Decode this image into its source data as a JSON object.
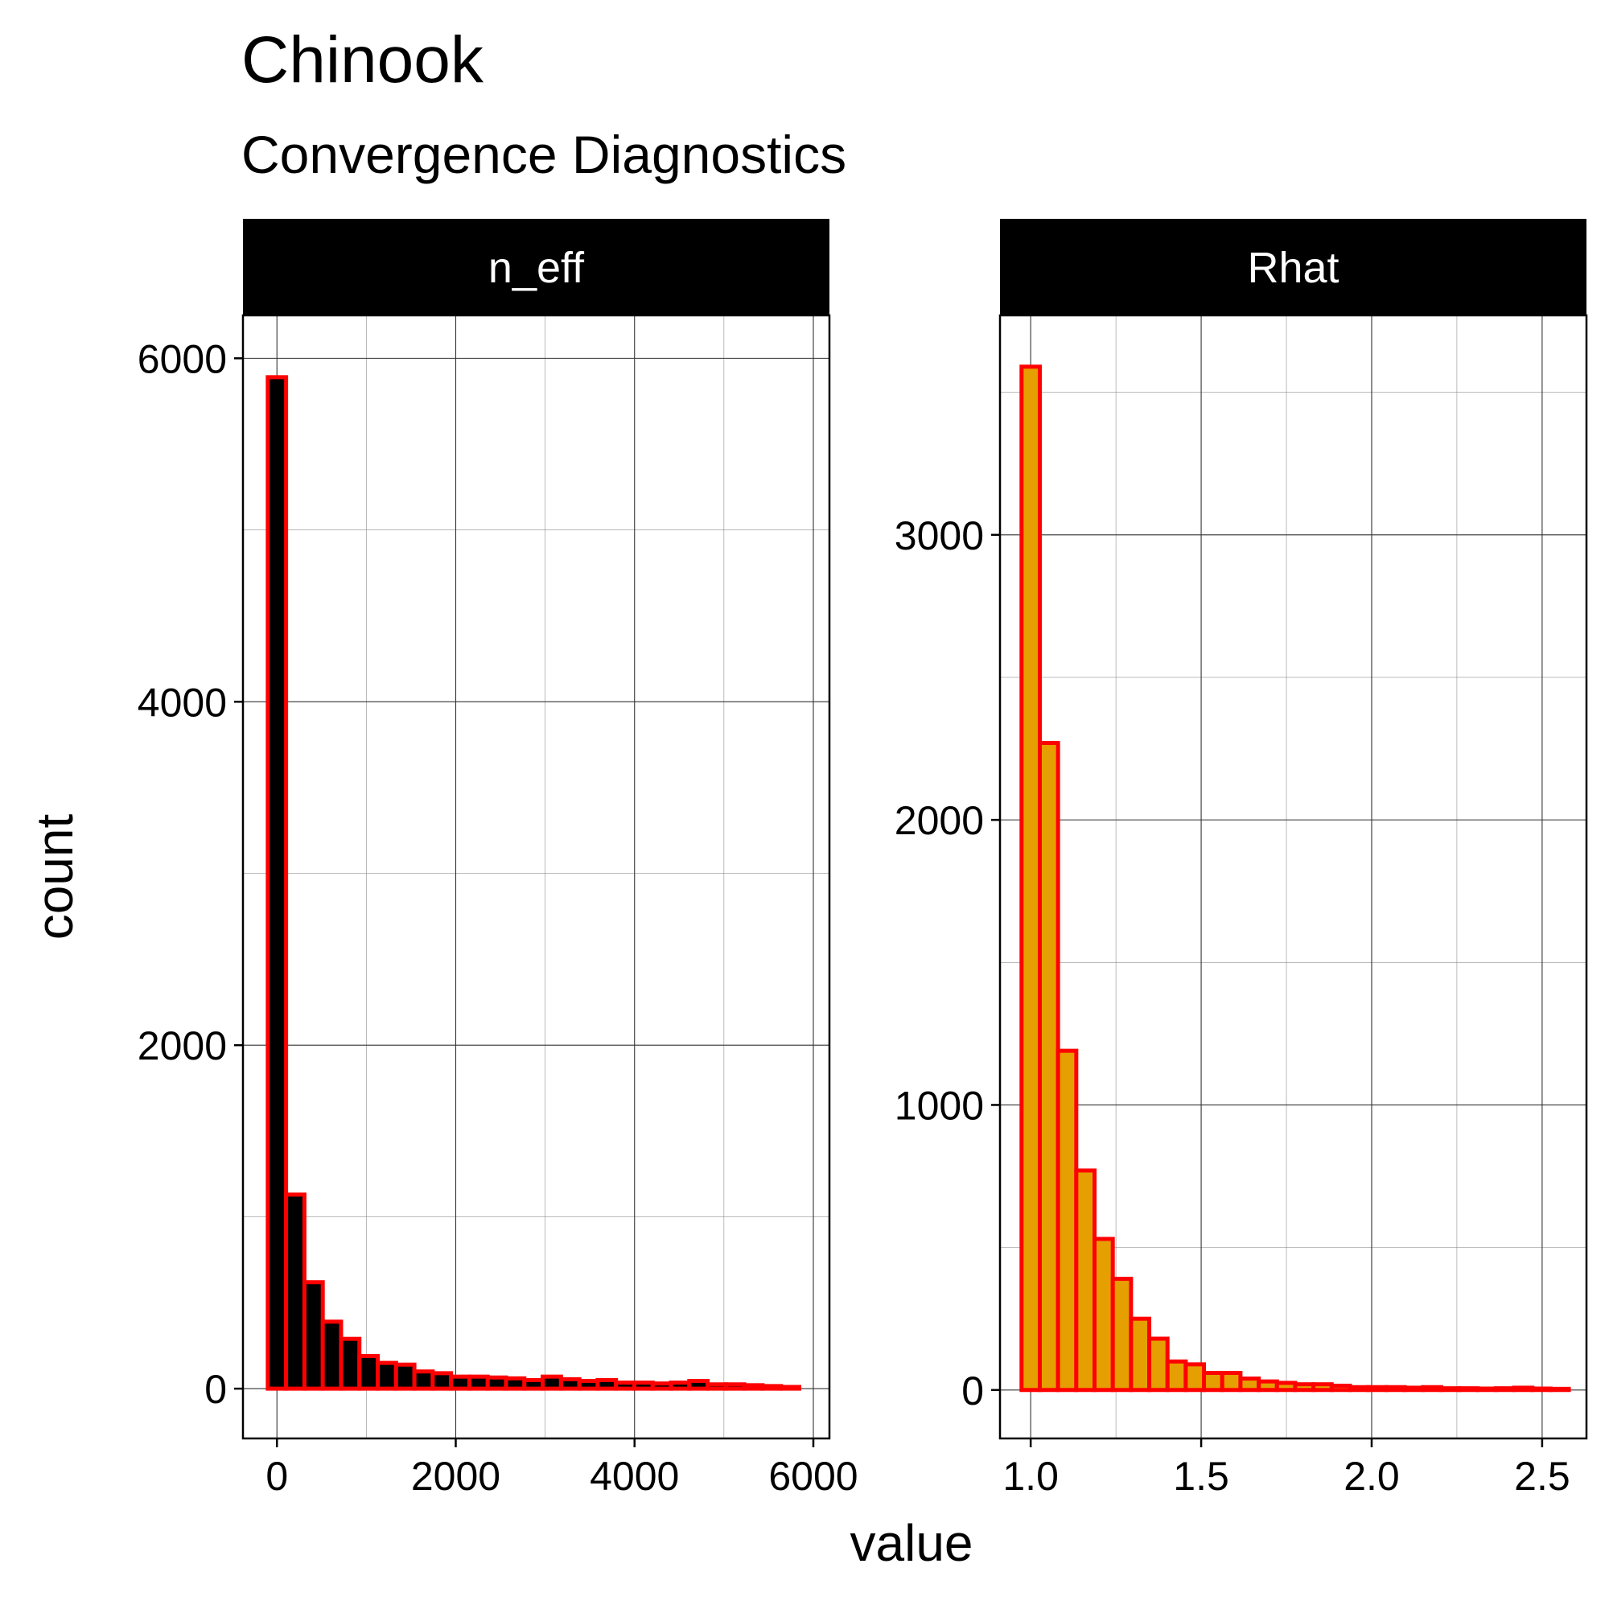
{
  "chart_data": {
    "type": "bar",
    "title": "Chinook",
    "subtitle": "Convergence Diagnostics",
    "xlabel": "value",
    "ylabel": "count",
    "outline_color": "#ff0000",
    "panels": [
      {
        "strip": "n_eff",
        "fill": "#000000",
        "xlim": [
          -380,
          6180
        ],
        "ylim": [
          -290,
          6250
        ],
        "xticks": [
          0,
          2000,
          4000,
          6000
        ],
        "xtick_labels": [
          "0",
          "2000",
          "4000",
          "6000"
        ],
        "yticks": [
          0,
          2000,
          4000,
          6000
        ],
        "ytick_labels": [
          "0",
          "2000",
          "4000",
          "6000"
        ],
        "bin_width": 205,
        "bin_centers": [
          0,
          205,
          410,
          615,
          820,
          1025,
          1230,
          1435,
          1640,
          1845,
          2050,
          2255,
          2460,
          2665,
          2870,
          3075,
          3280,
          3485,
          3690,
          3895,
          4100,
          4305,
          4510,
          4715,
          4920,
          5125,
          5330,
          5535,
          5740
        ],
        "values": [
          5890,
          1130,
          620,
          390,
          290,
          190,
          150,
          140,
          100,
          90,
          70,
          70,
          65,
          60,
          50,
          70,
          55,
          45,
          50,
          35,
          35,
          30,
          35,
          45,
          25,
          25,
          20,
          15,
          10
        ]
      },
      {
        "strip": "Rhat",
        "fill": "#e69f00",
        "xlim": [
          0.91,
          2.63
        ],
        "ylim": [
          -170,
          3770
        ],
        "xticks": [
          1.0,
          1.5,
          2.0,
          2.5
        ],
        "xtick_labels": [
          "1.0",
          "1.5",
          "2.0",
          "2.5"
        ],
        "yticks": [
          0,
          1000,
          2000,
          3000
        ],
        "ytick_labels": [
          "0",
          "1000",
          "2000",
          "3000"
        ],
        "bin_width": 0.0535,
        "bin_centers": [
          1.0,
          1.0535,
          1.107,
          1.1605,
          1.214,
          1.2675,
          1.321,
          1.3745,
          1.428,
          1.4815,
          1.535,
          1.5885,
          1.642,
          1.6955,
          1.749,
          1.8025,
          1.856,
          1.9095,
          1.963,
          2.0165,
          2.07,
          2.1235,
          2.177,
          2.2305,
          2.284,
          2.3375,
          2.391,
          2.4445,
          2.498,
          2.5515
        ],
        "values": [
          3590,
          2270,
          1190,
          770,
          530,
          390,
          250,
          180,
          100,
          90,
          60,
          60,
          40,
          30,
          25,
          20,
          20,
          15,
          10,
          10,
          10,
          8,
          10,
          6,
          6,
          5,
          6,
          8,
          5,
          4
        ]
      }
    ]
  }
}
